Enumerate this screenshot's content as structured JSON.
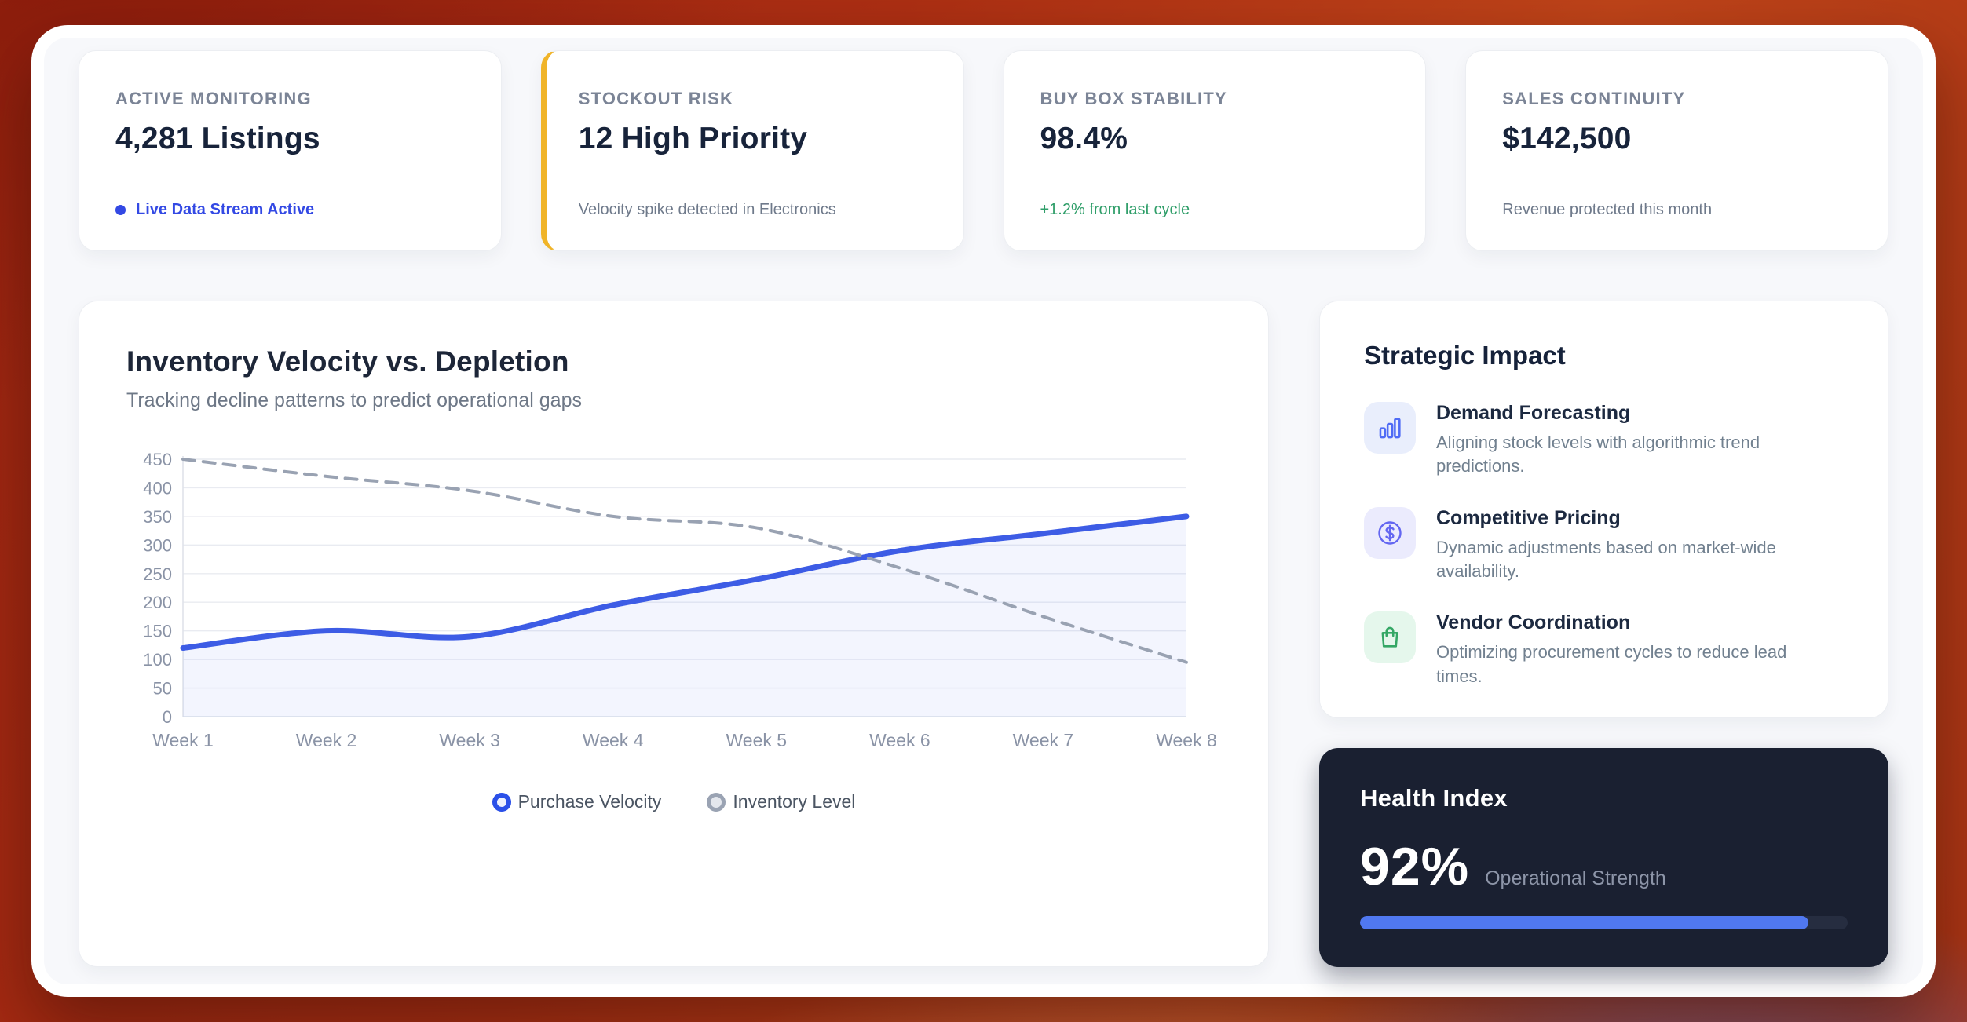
{
  "stat_cards": [
    {
      "label": "ACTIVE MONITORING",
      "value": "4,281 Listings",
      "note": "Live Data Stream Active"
    },
    {
      "label": "STOCKOUT RISK",
      "value": "12 High Priority",
      "note": "Velocity spike detected in Electronics"
    },
    {
      "label": "BUY BOX STABILITY",
      "value": "98.4%",
      "note": "+1.2% from last cycle"
    },
    {
      "label": "SALES CONTINUITY",
      "value": "$142,500",
      "note": "Revenue protected this month"
    }
  ],
  "chart": {
    "title": "Inventory Velocity vs. Depletion",
    "subtitle": "Tracking decline patterns to predict operational gaps"
  },
  "chart_data": {
    "type": "line",
    "title": "Inventory Velocity vs. Depletion",
    "categories": [
      "Week 1",
      "Week 2",
      "Week 3",
      "Week 4",
      "Week 5",
      "Week 6",
      "Week 7",
      "Week 8"
    ],
    "series": [
      {
        "name": "Purchase Velocity",
        "style": "solid",
        "color": "#3d5ce5",
        "area_fill": "rgba(80,110,235,0.07)",
        "values": [
          120,
          150,
          140,
          195,
          240,
          290,
          320,
          350
        ]
      },
      {
        "name": "Inventory Level",
        "style": "dashed",
        "color": "#99a2b2",
        "values": [
          450,
          420,
          395,
          350,
          330,
          260,
          175,
          95
        ]
      }
    ],
    "xlabel": "",
    "ylabel": "",
    "ylim": [
      0,
      450
    ],
    "yticks": [
      0,
      50,
      100,
      150,
      200,
      250,
      300,
      350,
      400,
      450
    ],
    "grid": true,
    "legend_position": "bottom"
  },
  "strategic": {
    "title": "Strategic Impact",
    "items": [
      {
        "icon": "bar-chart-icon",
        "title": "Demand Forecasting",
        "desc": "Aligning stock levels with algorithmic trend predictions."
      },
      {
        "icon": "dollar-circle-icon",
        "title": "Competitive Pricing",
        "desc": "Dynamic adjustments based on market-wide availability."
      },
      {
        "icon": "shopping-bag-icon",
        "title": "Vendor Coordination",
        "desc": "Optimizing procurement cycles to reduce lead times."
      }
    ]
  },
  "health": {
    "title": "Health Index",
    "value": "92%",
    "label": "Operational Strength",
    "progress_pct": 92
  },
  "colors": {
    "accent_blue": "#3349e4",
    "line_blue": "#3d5ce5",
    "line_gray": "#99a2b2",
    "amber": "#f0b429",
    "green": "#2f9e69",
    "dark_card": "#1a2031",
    "progress_fill": "#5078f0",
    "axis_text": "#8a93a6",
    "grid_line": "#e9ebf1",
    "axis_line": "#dfe3ea"
  }
}
